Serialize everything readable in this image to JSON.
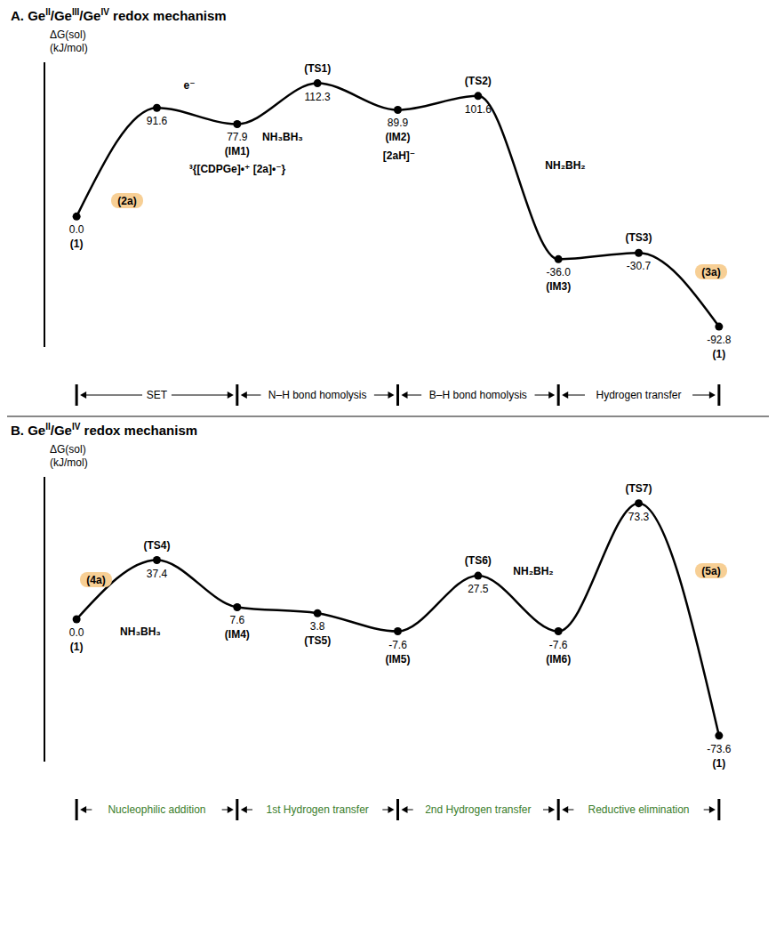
{
  "chart_data": [
    {
      "type": "line",
      "title": "A. GeII/GeIII/GeIV redox mechanism",
      "y_label": "ΔG(sol) (kJ/mol)",
      "categories": [
        "(1)",
        null,
        "(IM1)",
        "(TS1)",
        "(IM2)",
        "(TS2)",
        "(IM3)",
        "(TS3)",
        "(1)"
      ],
      "values": [
        0.0,
        91.6,
        77.9,
        112.3,
        89.9,
        101.6,
        -36.0,
        -30.7,
        -92.8
      ],
      "value_labels": [
        "0.0",
        "91.6",
        "77.9",
        "112.3",
        "89.9",
        "101.6",
        "-36.0",
        "-30.7",
        "-92.8"
      ],
      "ylim": [
        -110,
        130
      ],
      "tick_labels": false,
      "color": "#000000",
      "marker": "circle",
      "line_style": "solid",
      "annotations": [
        "(2a)",
        "e⁻",
        "NH₃BH₃",
        "³{[CDPGe]•⁺ [2a]•⁻}",
        "[2aH]⁻",
        "NH₂BH₂",
        "(3a)"
      ],
      "stages": [
        "SET",
        "N–H bond homolysis",
        "B–H bond homolysis",
        "Hydrogen transfer"
      ]
    },
    {
      "type": "line",
      "title": "B. GeII/GeIV redox mechanism",
      "y_label": "ΔG(sol) (kJ/mol)",
      "categories": [
        "(1)",
        "(TS4)",
        "(IM4)",
        "(TS5)",
        "(IM5)",
        "(TS6)",
        "(IM6)",
        "(TS7)",
        "(1)"
      ],
      "values": [
        0.0,
        37.4,
        7.6,
        3.8,
        -7.6,
        27.5,
        -7.6,
        73.3,
        -73.6
      ],
      "value_labels": [
        "0.0",
        "37.4",
        "7.6",
        "3.8",
        "-7.6",
        "27.5",
        "-7.6",
        "73.3",
        "-73.6"
      ],
      "ylim": [
        -90,
        90
      ],
      "tick_labels": false,
      "color": "#000000",
      "marker": "circle",
      "line_style": "solid",
      "annotations": [
        "(4a)",
        "NH₃BH₃",
        "NH₂BH₂",
        "(5a)"
      ],
      "stages": [
        "Nucleophilic addition",
        "1st Hydrogen transfer",
        "2nd Hydrogen transfer",
        "Reductive elimination"
      ]
    }
  ]
}
